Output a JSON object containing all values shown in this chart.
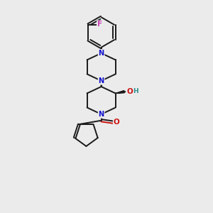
{
  "bg_color": "#ebebeb",
  "bond_color": "#1a1a1a",
  "N_color": "#1111cc",
  "O_color": "#cc1111",
  "F_color": "#cc44bb",
  "H_color": "#2a9090",
  "figsize": [
    3.0,
    3.0
  ],
  "dpi": 100,
  "xlim": [
    0,
    10
  ],
  "ylim": [
    0,
    10
  ]
}
